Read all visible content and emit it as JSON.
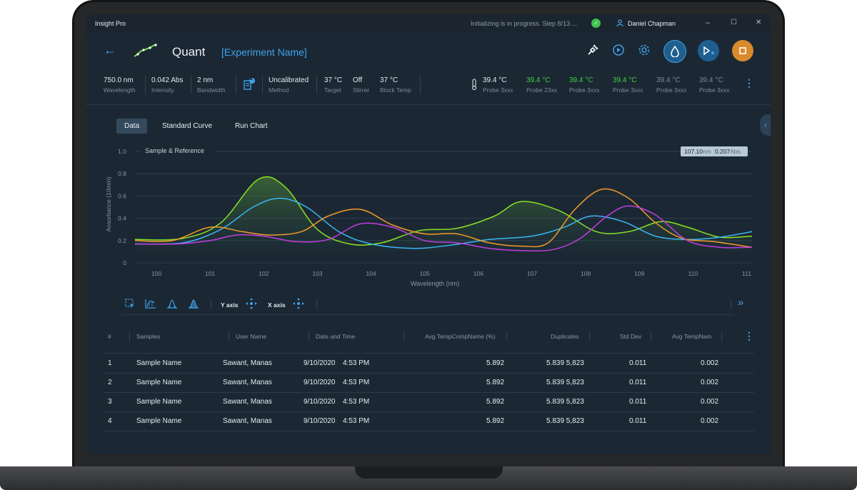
{
  "window": {
    "app_title": "Insight Pro",
    "status_text": "Initializing is in progress. Step 8/13 ...",
    "user_name": "Daniel Chapman",
    "minimize": "–",
    "maximize": "☐",
    "close": "✕"
  },
  "header": {
    "back": "←",
    "title": "Quant",
    "experiment_name": "[Experiment Name]"
  },
  "stats": [
    {
      "value": "750.0 nm",
      "label": "Wavelength"
    },
    {
      "value": "0.042 Abs",
      "label": "Intensity"
    },
    {
      "value": "2 nm",
      "label": "Bandwidth"
    },
    {
      "value": "Uncalibrated",
      "label": "Method"
    },
    {
      "value": "37 °C",
      "label": "Target"
    },
    {
      "value": "Off",
      "label": "Stirrer"
    },
    {
      "value": "37 °C",
      "label": "Block Temp"
    }
  ],
  "method_badge": "2",
  "probes": [
    {
      "value": "39.4 °C",
      "label": "Probe 3xxx"
    },
    {
      "value": "39.4 °C",
      "label": "Probe 23xx"
    },
    {
      "value": "39.4 °C",
      "label": "Probe 3xxx"
    },
    {
      "value": "39.4 °C",
      "label": "Probe 3xxx"
    },
    {
      "value": "39.4 °C",
      "label": "Probe 3xxx"
    },
    {
      "value": "39.4 °C",
      "label": "Probe 3xxx"
    }
  ],
  "colors": {
    "accent": "#3fa1ea",
    "green": "#8be024",
    "blue": "#3bb6f2",
    "orange": "#f29b2a",
    "purple": "#c13ddf",
    "stop": "#d98a2b"
  },
  "tabs": [
    "Data",
    "Standard Curve",
    "Run Chart"
  ],
  "chart_data": {
    "type": "line",
    "title": "Sample & Reference",
    "xlabel": "Wavelength (nm)",
    "ylabel": "Aosorbance (10mm)",
    "xlim": [
      99.6,
      111.1
    ],
    "ylim": [
      0,
      1.0
    ],
    "x_ticks": [
      "100",
      "101",
      "102",
      "103",
      "104",
      "105",
      "106",
      "107",
      "108",
      "109",
      "110",
      "111"
    ],
    "y_ticks": [
      "0",
      "0.2",
      "0.4",
      "0.6",
      "0.8",
      "1.0"
    ],
    "cursor_readout": {
      "x": "107.10",
      "x_unit": "nm",
      "y": "0.207",
      "y_unit": "Abs"
    },
    "series": [
      {
        "color": "green",
        "x": [
          99.6,
          100.5,
          101.2,
          101.9,
          102.4,
          103.0,
          103.6,
          104.2,
          104.9,
          105.6,
          106.3,
          106.8,
          107.5,
          108.2,
          108.8,
          109.4,
          109.9,
          110.5,
          111.1
        ],
        "y": [
          0.21,
          0.22,
          0.36,
          0.75,
          0.68,
          0.3,
          0.17,
          0.18,
          0.29,
          0.31,
          0.42,
          0.55,
          0.47,
          0.28,
          0.28,
          0.37,
          0.32,
          0.23,
          0.24
        ]
      },
      {
        "color": "blue",
        "x": [
          99.6,
          100.5,
          101.2,
          101.8,
          102.3,
          102.8,
          103.4,
          104.0,
          104.8,
          105.5,
          106.2,
          107.0,
          107.6,
          108.1,
          108.7,
          109.3,
          109.9,
          110.5,
          111.1
        ],
        "y": [
          0.17,
          0.18,
          0.3,
          0.5,
          0.58,
          0.5,
          0.28,
          0.17,
          0.13,
          0.16,
          0.21,
          0.24,
          0.32,
          0.42,
          0.37,
          0.24,
          0.21,
          0.23,
          0.28
        ]
      },
      {
        "color": "orange",
        "x": [
          99.6,
          100.3,
          101.0,
          101.6,
          102.1,
          102.7,
          103.2,
          103.8,
          104.4,
          105.0,
          105.6,
          106.2,
          106.8,
          107.3,
          107.8,
          108.3,
          108.8,
          109.3,
          109.8,
          110.4,
          111.1
        ],
        "y": [
          0.2,
          0.2,
          0.32,
          0.28,
          0.25,
          0.28,
          0.42,
          0.48,
          0.34,
          0.26,
          0.26,
          0.18,
          0.15,
          0.18,
          0.48,
          0.66,
          0.58,
          0.36,
          0.22,
          0.19,
          0.14
        ]
      },
      {
        "color": "purple",
        "x": [
          99.6,
          100.4,
          101.0,
          101.5,
          102.0,
          102.6,
          103.2,
          103.8,
          104.4,
          105.0,
          105.6,
          106.2,
          106.8,
          107.4,
          107.9,
          108.4,
          108.8,
          109.3,
          109.9,
          110.5,
          111.1
        ],
        "y": [
          0.17,
          0.17,
          0.2,
          0.25,
          0.24,
          0.19,
          0.21,
          0.35,
          0.32,
          0.2,
          0.18,
          0.13,
          0.11,
          0.12,
          0.22,
          0.42,
          0.51,
          0.43,
          0.2,
          0.14,
          0.14
        ]
      }
    ]
  },
  "toolbar": {
    "y_axis_label": "Y axis",
    "x_axis_label": "X axis",
    "icons": [
      "select-icon",
      "zoom-area-icon",
      "peak-icon",
      "area-icon"
    ],
    "expand": "»"
  },
  "table": {
    "headers": [
      "#",
      "Samples",
      "User Name",
      "Date and Time",
      "Avg TempCompName (%)",
      "Duplicates",
      "Std Dev",
      "Avg TempNam"
    ],
    "rows": [
      {
        "num": "1",
        "sample": "Sample Name",
        "user": "Sawant, Manas",
        "date": "9/10/2020",
        "time": "4:53 PM",
        "avg": "5.892",
        "dup": "5.839 5,823",
        "std": "0.011",
        "avg2": "0.002"
      },
      {
        "num": "2",
        "sample": "Sample Name",
        "user": "Sawant, Manas",
        "date": "9/10/2020",
        "time": "4:53 PM",
        "avg": "5.892",
        "dup": "5.839 5,823",
        "std": "0.011",
        "avg2": "0.002"
      },
      {
        "num": "3",
        "sample": "Sample Name",
        "user": "Sawant, Manas",
        "date": "9/10/2020",
        "time": "4:53 PM",
        "avg": "5.892",
        "dup": "5.839 5,823",
        "std": "0.011",
        "avg2": "0.002"
      },
      {
        "num": "4",
        "sample": "Sample Name",
        "user": "Sawant, Manas",
        "date": "9/10/2020",
        "time": "4:53 PM",
        "avg": "5.892",
        "dup": "5.839 5,823",
        "std": "0.011",
        "avg2": "0.002"
      }
    ]
  }
}
